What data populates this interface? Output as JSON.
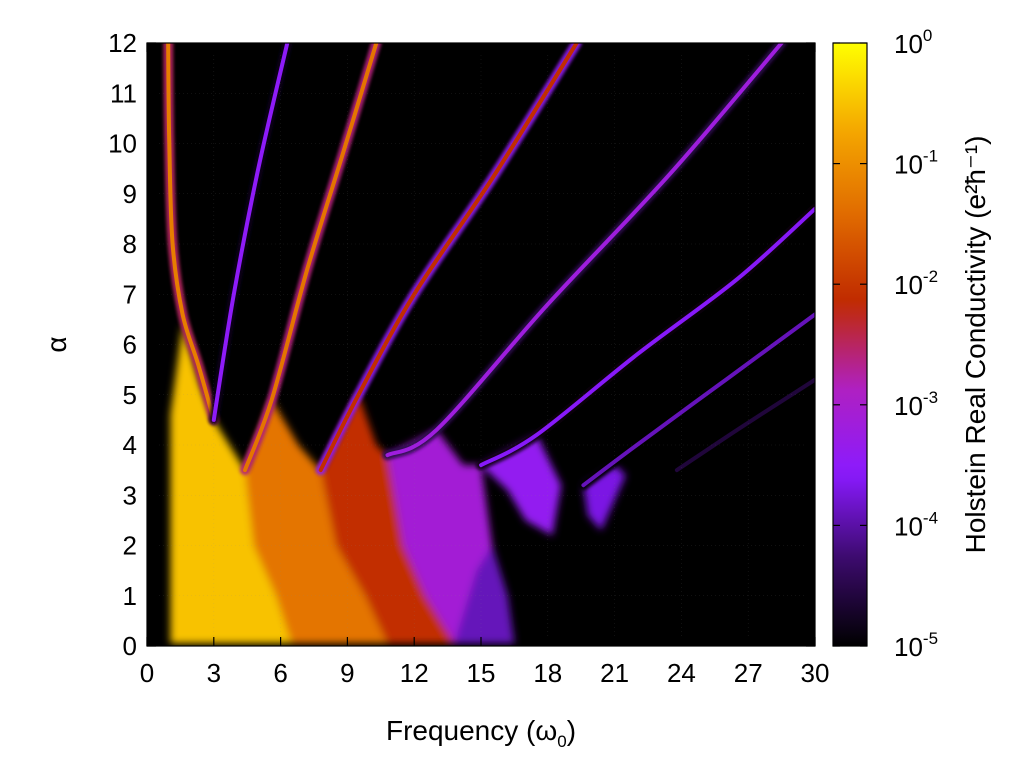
{
  "chart_data": {
    "type": "heatmap",
    "title": "",
    "xlabel": "Frequency (ω0)",
    "ylabel": "α",
    "colorbar_label": "Holstein Real Conductivity (e²ħ⁻¹)",
    "xlim": [
      0,
      30
    ],
    "ylim": [
      0,
      12
    ],
    "x_ticks": [
      0,
      3,
      6,
      9,
      12,
      15,
      18,
      21,
      24,
      27,
      30
    ],
    "y_ticks": [
      0,
      1,
      2,
      3,
      4,
      5,
      6,
      7,
      8,
      9,
      10,
      11,
      12
    ],
    "colorbar": {
      "scale": "log",
      "range": [
        1e-05,
        1
      ],
      "ticks": [
        {
          "base": "10",
          "exp": "0"
        },
        {
          "base": "10",
          "exp": "-1"
        },
        {
          "base": "10",
          "exp": "-2"
        },
        {
          "base": "10",
          "exp": "-3"
        },
        {
          "base": "10",
          "exp": "-4"
        },
        {
          "base": "10",
          "exp": "-5"
        }
      ],
      "colormap": [
        "#000000",
        "#3a0a6a",
        "#8a1aff",
        "#b020c0",
        "#c02a00",
        "#e06a00",
        "#f5a800",
        "#ffff00"
      ]
    },
    "background_color": "#000000",
    "features": [
      {
        "name": "band-0",
        "log10_value": -1.2,
        "points": [
          [
            0.95,
            12
          ],
          [
            1.0,
            10
          ],
          [
            1.15,
            8
          ],
          [
            1.6,
            6.6
          ],
          [
            2.3,
            5.6
          ],
          [
            3.0,
            4.5
          ]
        ]
      },
      {
        "name": "band-1",
        "log10_value": -3.5,
        "points": [
          [
            3.0,
            4.5
          ],
          [
            3.9,
            7.0
          ],
          [
            5.0,
            9.5
          ],
          [
            6.3,
            12
          ]
        ]
      },
      {
        "name": "band-2",
        "log10_value": -1.3,
        "points": [
          [
            4.4,
            3.5
          ],
          [
            5.6,
            4.9
          ],
          [
            7.2,
            7.5
          ],
          [
            8.8,
            9.8
          ],
          [
            10.3,
            12
          ]
        ]
      },
      {
        "name": "band-3",
        "log10_value": -2.1,
        "points": [
          [
            7.8,
            3.5
          ],
          [
            9.5,
            5.0
          ],
          [
            12.0,
            7.0
          ],
          [
            15.5,
            9.3
          ],
          [
            19.3,
            12
          ]
        ]
      },
      {
        "name": "band-4",
        "log10_value": -3.2,
        "points": [
          [
            10.8,
            3.8
          ],
          [
            13.0,
            4.3
          ],
          [
            18.0,
            6.8
          ],
          [
            23.5,
            9.4
          ],
          [
            28.5,
            12
          ]
        ]
      },
      {
        "name": "band-5",
        "log10_value": -3.6,
        "points": [
          [
            15.0,
            3.6
          ],
          [
            17.5,
            4.2
          ],
          [
            22.0,
            5.8
          ],
          [
            26.5,
            7.3
          ],
          [
            30,
            8.7
          ]
        ]
      },
      {
        "name": "band-6",
        "log10_value": -3.9,
        "points": [
          [
            19.6,
            3.2
          ],
          [
            22.0,
            4.0
          ],
          [
            26.0,
            5.3
          ],
          [
            30,
            6.6
          ]
        ]
      },
      {
        "name": "band-7",
        "log10_value": -4.6,
        "points": [
          [
            23.8,
            3.5
          ],
          [
            26.5,
            4.3
          ],
          [
            30,
            5.3
          ]
        ]
      }
    ],
    "regions": [
      {
        "name": "region-0",
        "log10_value": -0.5,
        "points": [
          [
            1.05,
            0.05
          ],
          [
            1.05,
            4.6
          ],
          [
            1.6,
            6.4
          ],
          [
            2.4,
            5.2
          ],
          [
            3.0,
            4.5
          ],
          [
            4.4,
            3.5
          ],
          [
            4.8,
            2.0
          ],
          [
            5.8,
            1.0
          ],
          [
            6.5,
            0.05
          ]
        ]
      },
      {
        "name": "region-1",
        "log10_value": -1.3,
        "points": [
          [
            4.4,
            3.5
          ],
          [
            5.6,
            4.9
          ],
          [
            6.8,
            4.0
          ],
          [
            7.8,
            3.5
          ],
          [
            8.5,
            2.0
          ],
          [
            9.8,
            1.0
          ],
          [
            10.8,
            0.05
          ],
          [
            6.5,
            0.05
          ],
          [
            5.8,
            1.0
          ],
          [
            4.8,
            2.0
          ]
        ]
      },
      {
        "name": "region-2",
        "log10_value": -2.1,
        "points": [
          [
            7.8,
            3.5
          ],
          [
            9.5,
            5.0
          ],
          [
            10.3,
            4.0
          ],
          [
            10.8,
            3.8
          ],
          [
            11.5,
            2.0
          ],
          [
            12.5,
            1.0
          ],
          [
            13.8,
            0.05
          ],
          [
            10.8,
            0.05
          ],
          [
            9.8,
            1.0
          ],
          [
            8.5,
            2.0
          ]
        ]
      },
      {
        "name": "region-3",
        "log10_value": -3.1,
        "points": [
          [
            10.8,
            3.8
          ],
          [
            13.0,
            4.3
          ],
          [
            14.2,
            3.6
          ],
          [
            15.0,
            3.6
          ],
          [
            15.5,
            2.0
          ],
          [
            16.0,
            1.0
          ],
          [
            16.5,
            0.05
          ],
          [
            13.8,
            0.05
          ],
          [
            12.5,
            1.0
          ],
          [
            11.5,
            2.0
          ]
        ]
      },
      {
        "name": "region-4",
        "log10_value": -3.4,
        "points": [
          [
            15.0,
            3.6
          ],
          [
            17.5,
            4.2
          ],
          [
            18.6,
            3.2
          ],
          [
            18.2,
            2.2
          ],
          [
            17.0,
            2.5
          ],
          [
            16.2,
            3.1
          ]
        ]
      },
      {
        "name": "region-5",
        "log10_value": -3.7,
        "points": [
          [
            19.6,
            3.2
          ],
          [
            21.0,
            3.6
          ],
          [
            21.5,
            3.4
          ],
          [
            20.4,
            2.3
          ],
          [
            19.8,
            2.6
          ]
        ]
      },
      {
        "name": "region-6",
        "log10_value": -3.9,
        "points": [
          [
            13.8,
            0.05
          ],
          [
            14.8,
            1.5
          ],
          [
            15.5,
            2.0
          ],
          [
            16.2,
            1.0
          ],
          [
            16.5,
            0.05
          ]
        ]
      }
    ]
  }
}
